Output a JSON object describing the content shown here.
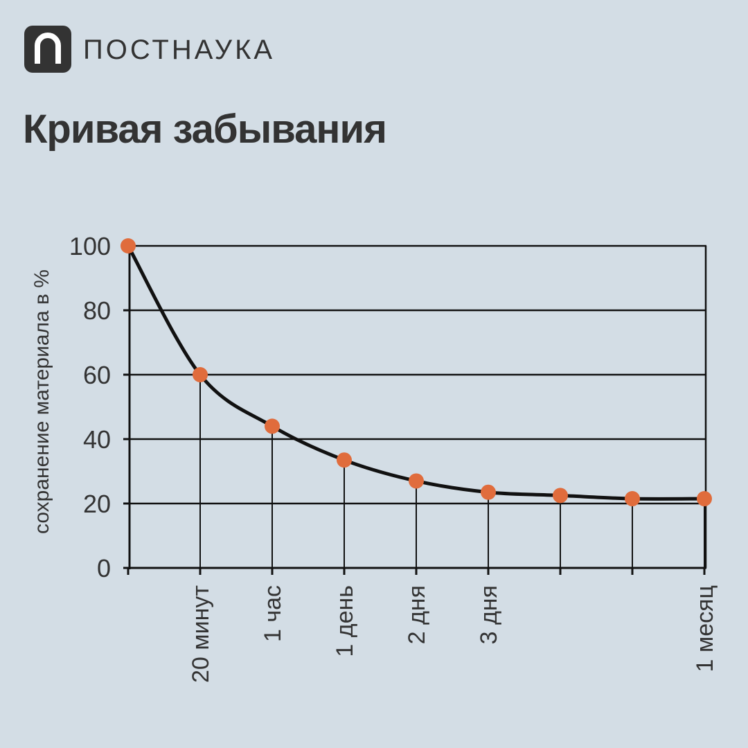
{
  "brand": "ПОСТНАУКА",
  "chart_data": {
    "type": "line",
    "title": "Кривая забывания",
    "y_label": "сохранение материала в %",
    "categories": [
      null,
      "20 минут",
      "1 час",
      "1 день",
      "2 дня",
      "3 дня",
      null,
      null,
      "1 месяц"
    ],
    "values": [
      100,
      60,
      44,
      33.5,
      27,
      23.5,
      22.5,
      21.5,
      21.5
    ],
    "color": "#111111",
    "marker_color": "#e06c3c",
    "ylim": [
      0,
      100
    ],
    "yticks": [
      0,
      20,
      40,
      60,
      80,
      100
    ],
    "grid": true
  }
}
